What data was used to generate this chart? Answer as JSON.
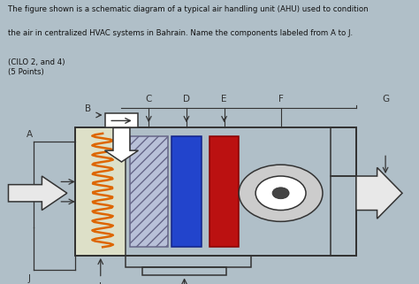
{
  "bg_color": "#b0bfc8",
  "bg_diagram": "#c8d4c0",
  "text_color": "#111111",
  "title_line1": "The figure shown is a schematic diagram of a typical air handling unit (AHU) used to condition",
  "title_line2": "the air in centralized HVAC systems in Bahrain. Name the components labeled from A to J.",
  "subtitle": "(CILO 2, and 4)\n(5 Points)",
  "box_edge": "#222222",
  "coil_blue": "#2244cc",
  "coil_red": "#bb1111",
  "fan_gray": "#cccccc",
  "fan_dark": "#888888",
  "spring_color": "#dd6600",
  "filter_face": "#dde0c8",
  "hatch_face": "#b8c0d8",
  "arrow_hollow": "#e8e8e8",
  "lc": "#333333",
  "label_fontsize": 7.5
}
